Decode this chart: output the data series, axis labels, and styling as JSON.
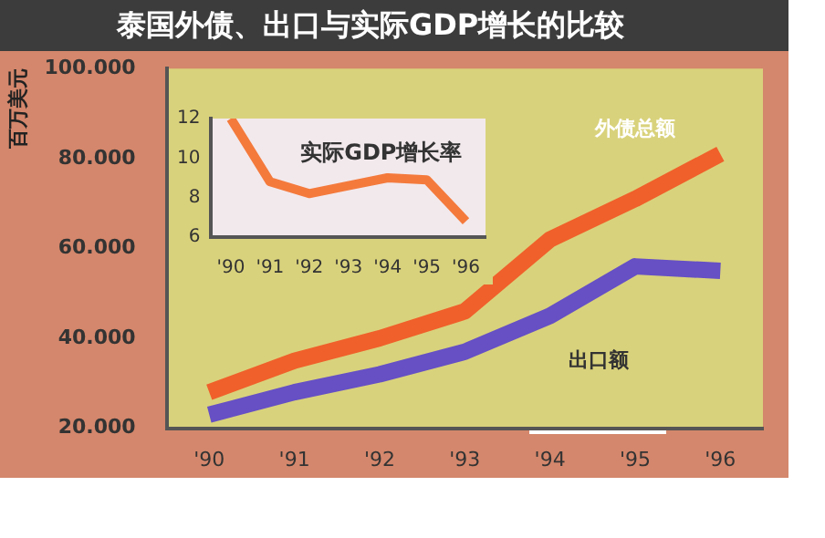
{
  "chart_data": [
    {
      "type": "line",
      "title": "泰国外债、出口与实际GDP增长的比较",
      "ylabel": "百万美元",
      "categories": [
        "'90",
        "'91",
        "'92",
        "'93",
        "'94",
        "'95",
        "'96"
      ],
      "series": [
        {
          "name": "外债总额",
          "color": "#f0602a",
          "values": [
            28000,
            35000,
            40000,
            46000,
            62000,
            71000,
            81000
          ]
        },
        {
          "name": "出口额",
          "color": "#6650c4",
          "values": [
            23000,
            28000,
            32000,
            37000,
            45000,
            56000,
            55000
          ]
        }
      ],
      "ylim": [
        20000,
        100000
      ],
      "yticks": [
        {
          "value": 20000,
          "label": "20.000"
        },
        {
          "value": 40000,
          "label": "40.000"
        },
        {
          "value": 60000,
          "label": "60.000"
        },
        {
          "value": 80000,
          "label": "80.000"
        },
        {
          "value": 100000,
          "label": "100.000"
        }
      ],
      "grid": false,
      "legend": false,
      "marker": "none",
      "line_style": "solid"
    },
    {
      "type": "line",
      "title": "实际GDP增长率",
      "categories": [
        "'90",
        "'91",
        "'92",
        "'93",
        "'94",
        "'95",
        "'96"
      ],
      "series": [
        {
          "color": "#f47a3c",
          "values": [
            12,
            8.8,
            8.2,
            8.6,
            9.0,
            8.9,
            6.8
          ]
        }
      ],
      "ylim": [
        6,
        12
      ],
      "yticks": [
        6,
        8,
        10,
        12
      ],
      "grid": false,
      "legend": false,
      "marker": "none",
      "line_style": "solid"
    }
  ]
}
